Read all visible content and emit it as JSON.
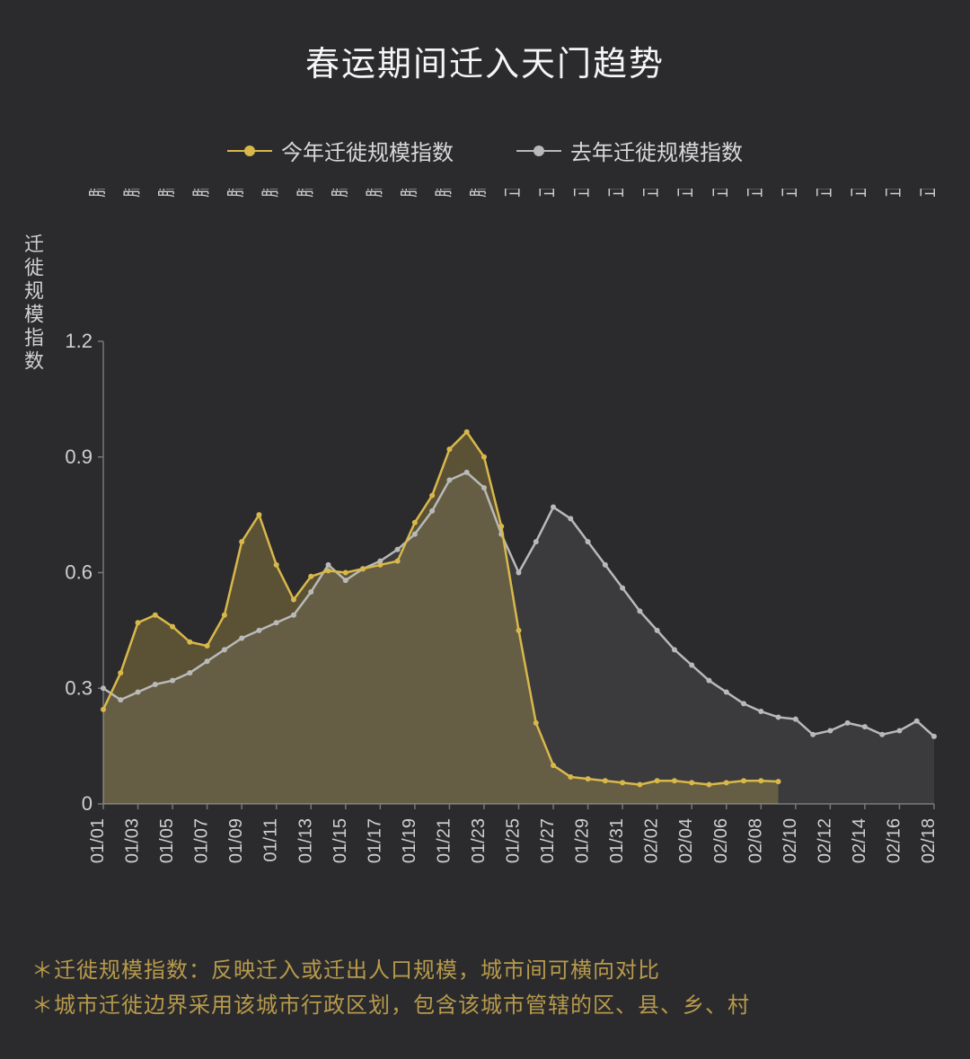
{
  "title": "春运期间迁入天门趋势",
  "y_axis_title": "迁徙规模指数",
  "legend": {
    "this_year": "今年迁徙规模指数",
    "last_year": "去年迁徙规模指数"
  },
  "footnotes": {
    "line1": "＊迁徙规模指数：反映迁入或迁出人口规模，城市间可横向对比",
    "line2": "＊城市迁徙边界采用该城市行政区划，包含该城市管辖的区、县、乡、村"
  },
  "chart": {
    "type": "line",
    "background_color": "#2b2b2e",
    "grid_color": "#777777",
    "text_color": "#d0d0d0",
    "title_fontsize": 38,
    "label_fontsize": 22,
    "tick_fontsize": 20,
    "ylim": [
      0,
      1.2
    ],
    "yticks": [
      0,
      0.3,
      0.6,
      0.9,
      1.2
    ],
    "x_categories_bottom": [
      "01/01",
      "01/03",
      "01/05",
      "01/07",
      "01/09",
      "01/11",
      "01/13",
      "01/15",
      "01/17",
      "01/19",
      "01/21",
      "01/23",
      "01/25",
      "01/27",
      "01/29",
      "01/31",
      "02/02",
      "02/04",
      "02/06",
      "02/08",
      "02/10",
      "02/12",
      "02/14",
      "02/16",
      "02/18"
    ],
    "x_categories_top": [
      "腊月初七",
      "腊月初九",
      "腊月十一",
      "腊月十三",
      "腊月十五",
      "腊月十七",
      "腊月十九",
      "腊月廿一",
      "腊月廿三",
      "腊月廿五",
      "腊月廿七",
      "腊月廿九",
      "正月初一",
      "正月初三",
      "正月初五",
      "正月初七",
      "正月初九",
      "正月十一",
      "正月十三",
      "正月十五",
      "正月十七",
      "正月十九",
      "正月廿一",
      "正月廿三",
      "正月廿五"
    ],
    "series": {
      "this_year": {
        "color": "#d9b84a",
        "fill_color": "#d9b84a",
        "fill_opacity": 0.28,
        "line_width": 2.5,
        "marker_radius": 3,
        "values": [
          0.245,
          0.34,
          0.47,
          0.49,
          0.46,
          0.42,
          0.41,
          0.49,
          0.68,
          0.75,
          0.62,
          0.53,
          0.59,
          0.605,
          0.6,
          0.61,
          0.62,
          0.63,
          0.73,
          0.8,
          0.92,
          0.965,
          0.9,
          0.72,
          0.45,
          0.21,
          0.1,
          0.07,
          0.065,
          0.06,
          0.055,
          0.05,
          0.06,
          0.06,
          0.055,
          0.05,
          0.055,
          0.06,
          0.06,
          0.058
        ]
      },
      "last_year": {
        "color": "#b9b9b9",
        "fill_color": "#b9b9b9",
        "fill_opacity": 0.12,
        "line_width": 2.5,
        "marker_radius": 3,
        "values": [
          0.3,
          0.27,
          0.29,
          0.31,
          0.32,
          0.34,
          0.37,
          0.4,
          0.43,
          0.45,
          0.47,
          0.49,
          0.55,
          0.62,
          0.58,
          0.61,
          0.63,
          0.66,
          0.7,
          0.76,
          0.84,
          0.86,
          0.82,
          0.7,
          0.6,
          0.68,
          0.77,
          0.74,
          0.68,
          0.62,
          0.56,
          0.5,
          0.45,
          0.4,
          0.36,
          0.32,
          0.29,
          0.26,
          0.24,
          0.225,
          0.22,
          0.18,
          0.19,
          0.21,
          0.2,
          0.18,
          0.19,
          0.215,
          0.175
        ]
      }
    }
  }
}
